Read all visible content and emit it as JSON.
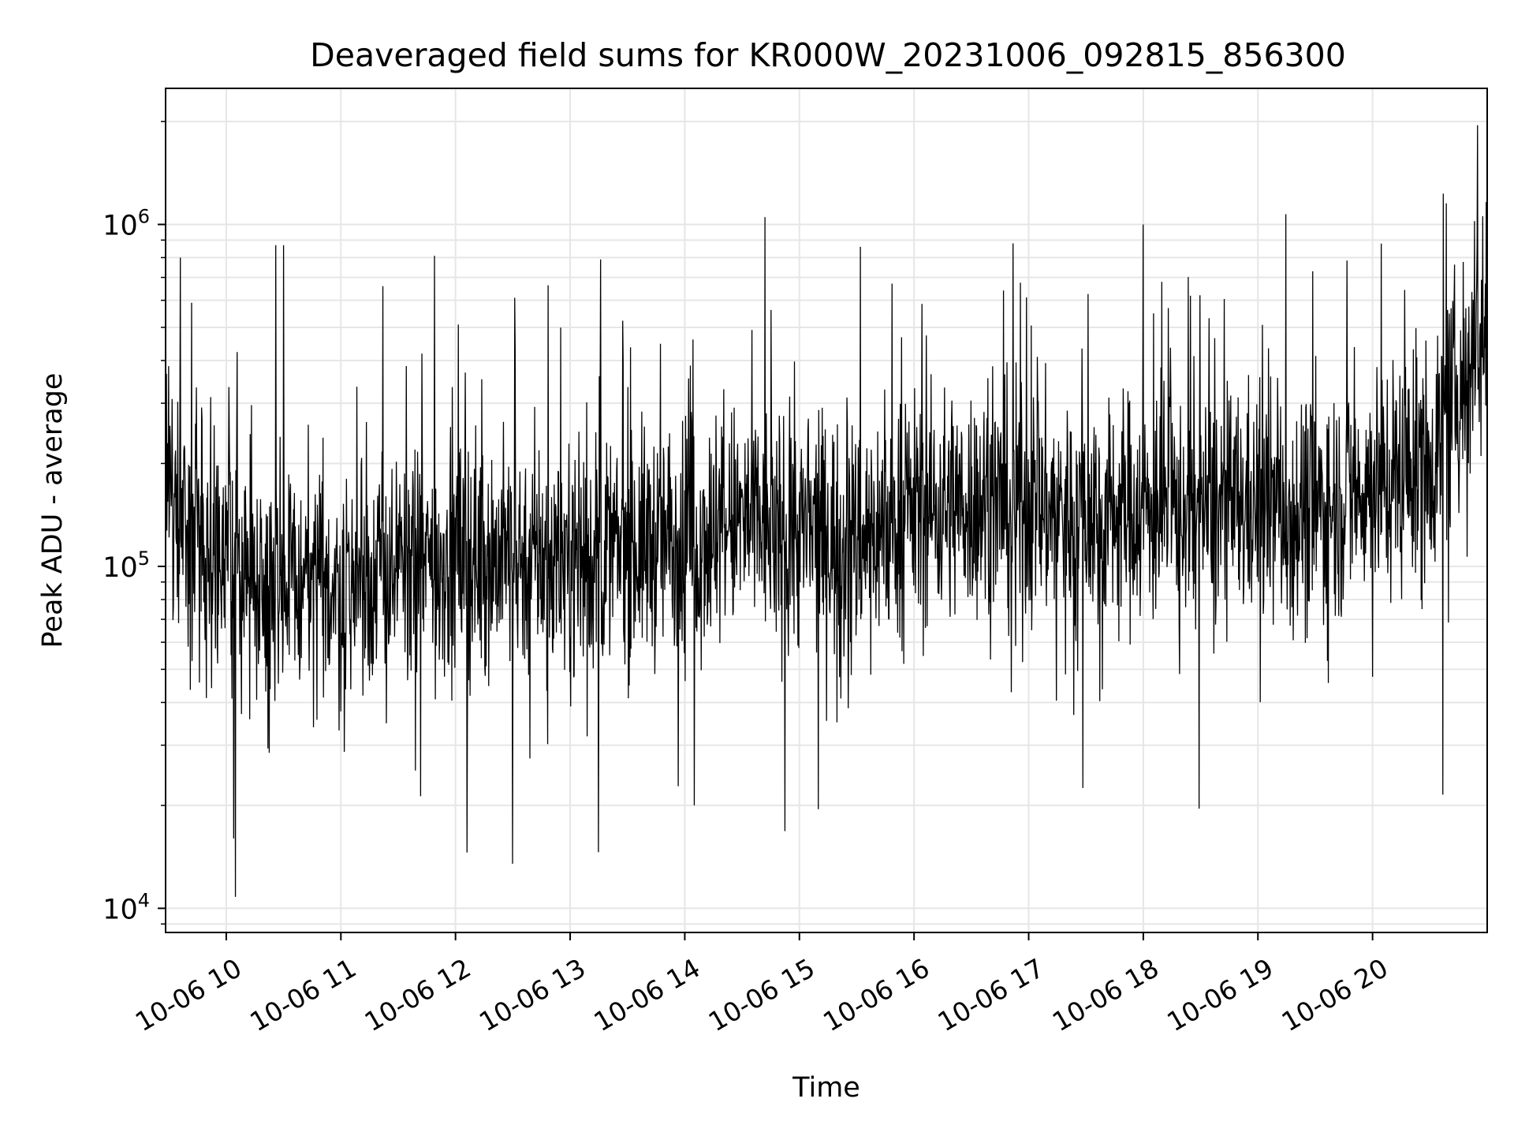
{
  "chart_data": {
    "type": "line",
    "title": "Deaveraged field sums for KR000W_20231006_092815_856300",
    "xlabel": "Time",
    "ylabel": "Peak ADU - average",
    "yscale": "log",
    "ylim": [
      8500,
      2500000
    ],
    "xlim": [
      "2023-10-06 09:28:15",
      "2023-10-06 21:00:00"
    ],
    "grid": true,
    "line_color": "#000000",
    "grid_color": "#e6e6e6",
    "x_ticks": [
      {
        "value": "2023-10-06 10:00",
        "label": "10-06 10"
      },
      {
        "value": "2023-10-06 11:00",
        "label": "10-06 11"
      },
      {
        "value": "2023-10-06 12:00",
        "label": "10-06 12"
      },
      {
        "value": "2023-10-06 13:00",
        "label": "10-06 13"
      },
      {
        "value": "2023-10-06 14:00",
        "label": "10-06 14"
      },
      {
        "value": "2023-10-06 15:00",
        "label": "10-06 15"
      },
      {
        "value": "2023-10-06 16:00",
        "label": "10-06 16"
      },
      {
        "value": "2023-10-06 17:00",
        "label": "10-06 17"
      },
      {
        "value": "2023-10-06 18:00",
        "label": "10-06 18"
      },
      {
        "value": "2023-10-06 19:00",
        "label": "10-06 19"
      },
      {
        "value": "2023-10-06 20:00",
        "label": "10-06 20"
      }
    ],
    "y_ticks": [
      {
        "value": 10000,
        "base": "10",
        "exp": "4"
      },
      {
        "value": 100000,
        "base": "10",
        "exp": "5"
      },
      {
        "value": 1000000,
        "base": "10",
        "exp": "6"
      }
    ],
    "series": [
      {
        "trend": [
          {
            "x": "2023-10-06 09:28",
            "y": 175000
          },
          {
            "x": "2023-10-06 09:45",
            "y": 135000
          },
          {
            "x": "2023-10-06 10:00",
            "y": 105000
          },
          {
            "x": "2023-10-06 10:30",
            "y": 90000
          },
          {
            "x": "2023-10-06 11:00",
            "y": 88000
          },
          {
            "x": "2023-10-06 11:30",
            "y": 98000
          },
          {
            "x": "2023-10-06 12:00",
            "y": 105000
          },
          {
            "x": "2023-10-06 12:30",
            "y": 108000
          },
          {
            "x": "2023-10-06 13:00",
            "y": 105000
          },
          {
            "x": "2023-10-06 13:30",
            "y": 112000
          },
          {
            "x": "2023-10-06 14:00",
            "y": 122000
          },
          {
            "x": "2023-10-06 14:30",
            "y": 135000
          },
          {
            "x": "2023-10-06 15:00",
            "y": 125000
          },
          {
            "x": "2023-10-06 15:30",
            "y": 120000
          },
          {
            "x": "2023-10-06 16:00",
            "y": 145000
          },
          {
            "x": "2023-10-06 16:30",
            "y": 155000
          },
          {
            "x": "2023-10-06 17:00",
            "y": 150000
          },
          {
            "x": "2023-10-06 17:30",
            "y": 142000
          },
          {
            "x": "2023-10-06 18:00",
            "y": 150000
          },
          {
            "x": "2023-10-06 18:30",
            "y": 145000
          },
          {
            "x": "2023-10-06 19:00",
            "y": 150000
          },
          {
            "x": "2023-10-06 19:30",
            "y": 145000
          },
          {
            "x": "2023-10-06 20:00",
            "y": 175000
          },
          {
            "x": "2023-10-06 20:30",
            "y": 200000
          },
          {
            "x": "2023-10-06 20:45",
            "y": 330000
          },
          {
            "x": "2023-10-06 21:00",
            "y": 520000
          }
        ],
        "spikes": [
          {
            "x": "2023-10-06 09:36",
            "y": 800000
          },
          {
            "x": "2023-10-06 09:42",
            "y": 590000
          },
          {
            "x": "2023-10-06 10:05",
            "y": 10800
          },
          {
            "x": "2023-10-06 10:04",
            "y": 16000
          },
          {
            "x": "2023-10-06 10:26",
            "y": 870000
          },
          {
            "x": "2023-10-06 10:30",
            "y": 870000
          },
          {
            "x": "2023-10-06 11:22",
            "y": 660000
          },
          {
            "x": "2023-10-06 11:49",
            "y": 810000
          },
          {
            "x": "2023-10-06 12:30",
            "y": 13500
          },
          {
            "x": "2023-10-06 12:31",
            "y": 610000
          },
          {
            "x": "2023-10-06 13:15",
            "y": 14600
          },
          {
            "x": "2023-10-06 13:16",
            "y": 790000
          },
          {
            "x": "2023-10-06 14:05",
            "y": 20000
          },
          {
            "x": "2023-10-06 14:42",
            "y": 1050000
          },
          {
            "x": "2023-10-06 15:10",
            "y": 19500
          },
          {
            "x": "2023-10-06 15:32",
            "y": 860000
          },
          {
            "x": "2023-10-06 18:00",
            "y": 1000000
          },
          {
            "x": "2023-10-06 20:37",
            "y": 21500
          },
          {
            "x": "2023-10-06 20:37",
            "y": 1230000
          },
          {
            "x": "2023-10-06 20:55",
            "y": 1950000
          }
        ]
      }
    ]
  }
}
